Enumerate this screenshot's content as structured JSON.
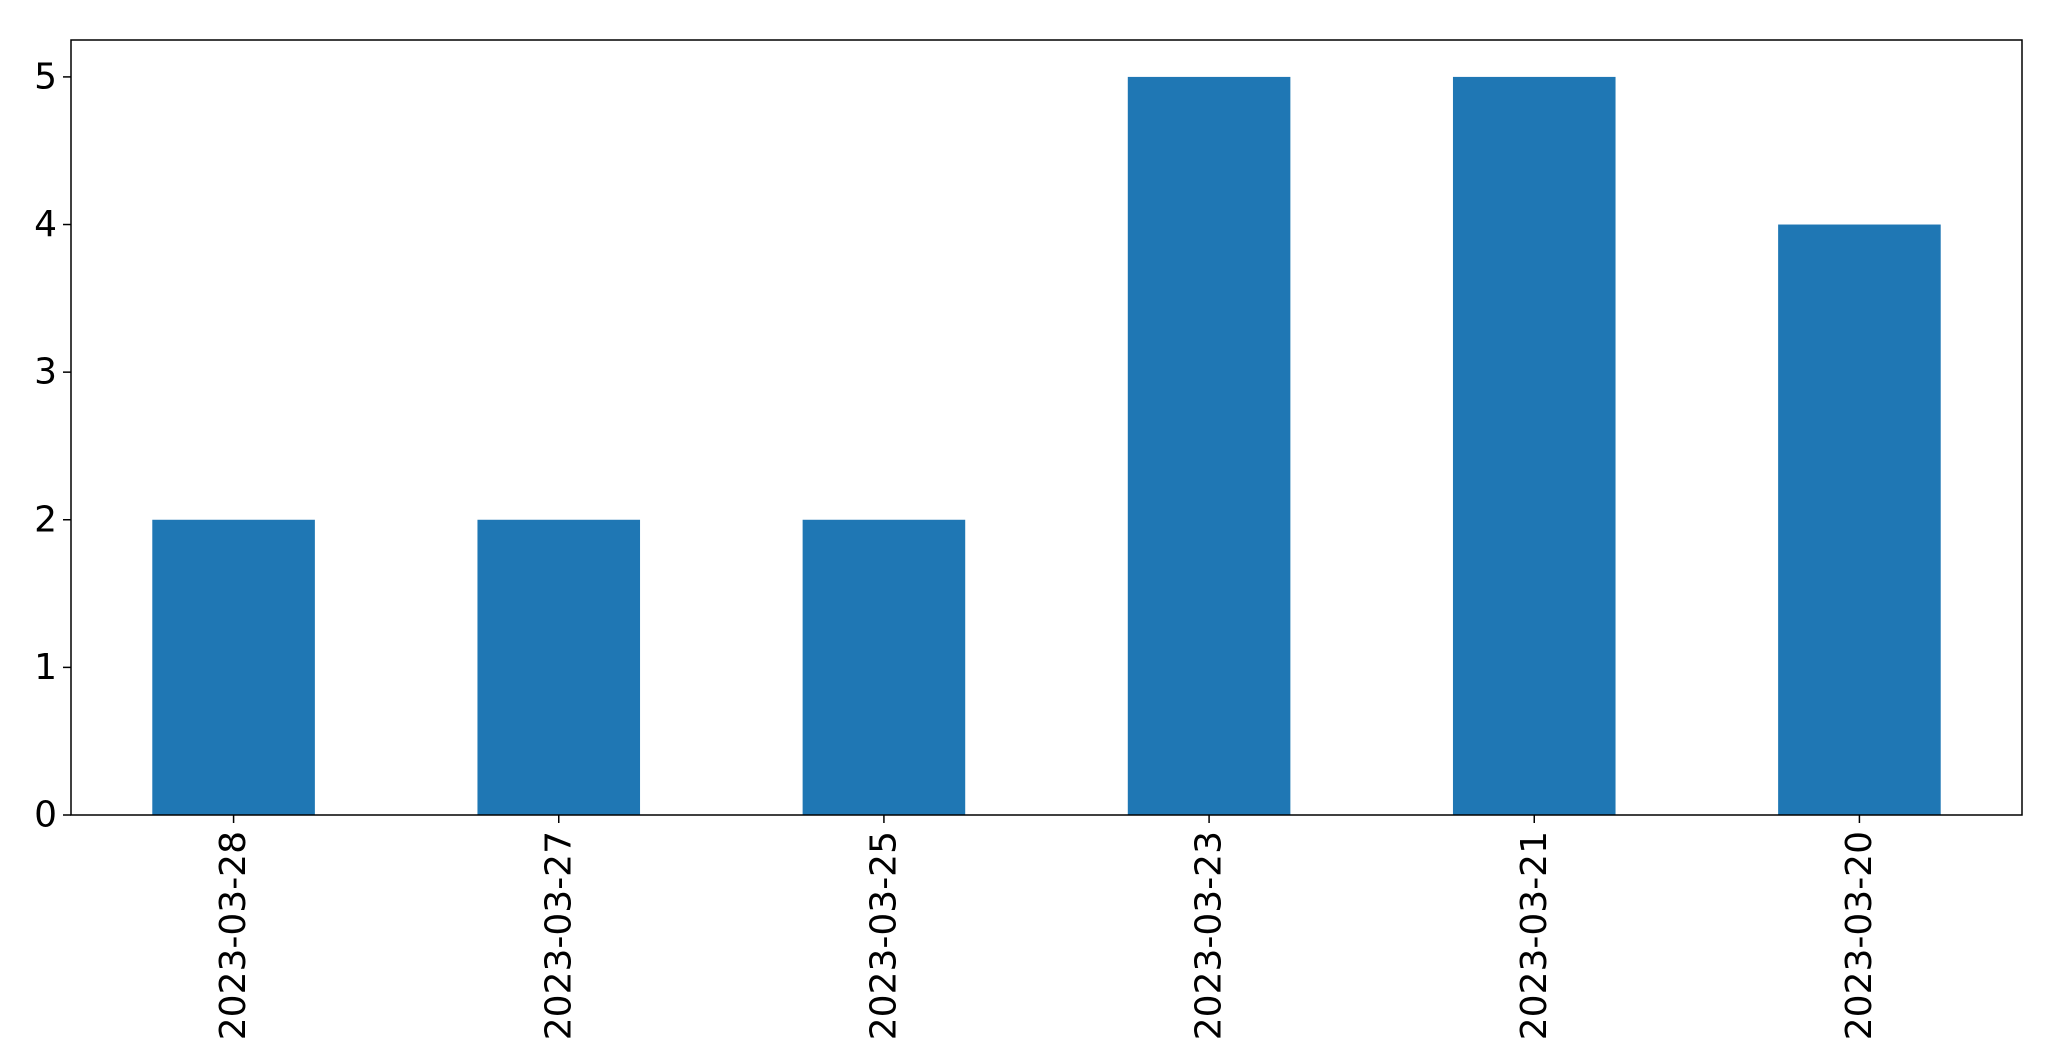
{
  "chart_data": {
    "type": "bar",
    "categories": [
      "2023-03-28",
      "2023-03-27",
      "2023-03-25",
      "2023-03-23",
      "2023-03-21",
      "2023-03-20"
    ],
    "values": [
      2,
      2,
      2,
      5,
      5,
      4
    ],
    "title": "",
    "xlabel": "",
    "ylabel": "",
    "ylim": [
      0,
      5.25
    ],
    "yticks": [
      0,
      1,
      2,
      3,
      4,
      5
    ],
    "grid": false,
    "legend": false,
    "bar_color": "#1f77b4"
  }
}
